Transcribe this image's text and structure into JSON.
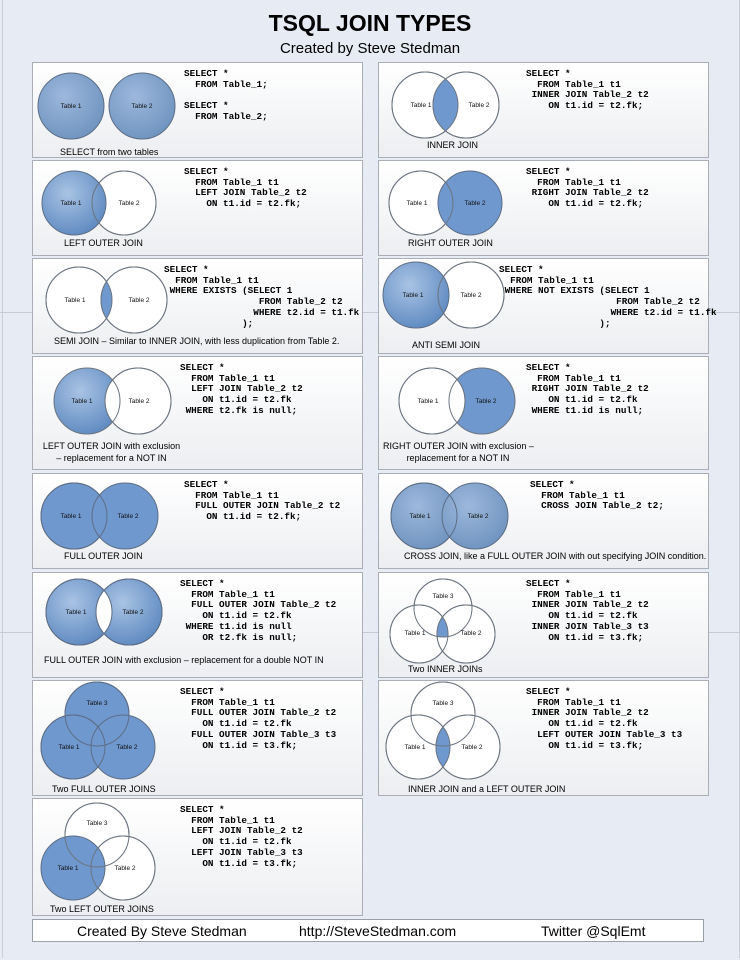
{
  "title": "TSQL JOIN TYPES",
  "subtitle": "Created by Steve Stedman",
  "colors": {
    "fill_blue": "#6f98cf",
    "outline": "#6c7580",
    "page_bg": "#e7ebf3"
  },
  "venn_labels": {
    "t1": "Table 1",
    "t2": "Table 2",
    "t3": "Table 3"
  },
  "panels": {
    "select_two_tables": {
      "caption": "SELECT from two tables",
      "code": "SELECT *\n  FROM Table_1;\n\nSELECT *\n  FROM Table_2;"
    },
    "inner_join": {
      "caption": "INNER JOIN",
      "code": "SELECT *\n  FROM Table_1 t1\n INNER JOIN Table_2 t2\n    ON t1.id = t2.fk;"
    },
    "left_outer_join": {
      "caption": "LEFT OUTER JOIN",
      "code": "SELECT *\n  FROM Table_1 t1\n  LEFT JOIN Table_2 t2\n    ON t1.id = t2.fk;"
    },
    "right_outer_join": {
      "caption": "RIGHT OUTER JOIN",
      "code": "SELECT *\n  FROM Table_1 t1\n RIGHT JOIN Table_2 t2\n    ON t1.id = t2.fk;"
    },
    "semi_join": {
      "caption": "SEMI JOIN – Similar to INNER JOIN, with less duplication from Table 2.",
      "code": "SELECT *\n  FROM Table_1 t1\n WHERE EXISTS (SELECT 1\n                 FROM Table_2 t2\n                WHERE t2.id = t1.fk\n              );"
    },
    "anti_semi_join": {
      "caption": "ANTI SEMI JOIN",
      "code": "SELECT *\n  FROM Table_1 t1\n WHERE NOT EXISTS (SELECT 1\n                     FROM Table_2 t2\n                    WHERE t2.id = t1.fk\n                  );"
    },
    "left_outer_exclusion": {
      "caption": "LEFT OUTER JOIN with exclusion\n– replacement for a NOT IN",
      "code": "SELECT *\n  FROM Table_1 t1\n  LEFT JOIN Table_2 t2\n    ON t1.id = t2.fk\n WHERE t2.fk is null;"
    },
    "right_outer_exclusion": {
      "caption": "RIGHT OUTER JOIN with exclusion –\nreplacement for a NOT IN",
      "code": "SELECT *\n  FROM Table_1 t1\n RIGHT JOIN Table_2 t2\n    ON t1.id = t2.fk\n WHERE t1.id is null;"
    },
    "full_outer_join": {
      "caption": "FULL OUTER JOIN",
      "code": "SELECT *\n  FROM Table_1 t1\n  FULL OUTER JOIN Table_2 t2\n    ON t1.id = t2.fk;"
    },
    "cross_join": {
      "caption": "CROSS JOIN, like a FULL OUTER JOIN with out specifying JOIN condition.",
      "code": "SELECT *\n  FROM Table_1 t1\n  CROSS JOIN Table_2 t2;"
    },
    "full_outer_exclusion": {
      "caption": "FULL OUTER JOIN with exclusion – replacement for a double NOT IN",
      "code": "SELECT *\n  FROM Table_1 t1\n  FULL OUTER JOIN Table_2 t2\n    ON t1.id = t2.fk\n WHERE t1.id is null\n    OR t2.fk is null;"
    },
    "two_inner_joins": {
      "caption": "Two INNER JOINs",
      "code": "SELECT *\n  FROM Table_1 t1\n INNER JOIN Table_2 t2\n    ON t1.id = t2.fk\n INNER JOIN Table_3 t3\n    ON t1.id = t3.fk;"
    },
    "two_full_outer_joins": {
      "caption": "Two FULL OUTER JOINS",
      "code": "SELECT *\n  FROM Table_1 t1\n  FULL OUTER JOIN Table_2 t2\n    ON t1.id = t2.fk\n  FULL OUTER JOIN Table_3 t3\n    ON t1.id = t3.fk;"
    },
    "inner_and_left_outer": {
      "caption": "INNER JOIN and a LEFT OUTER JOIN",
      "code": "SELECT *\n  FROM Table_1 t1\n INNER JOIN Table_2 t2\n    ON t1.id = t2.fk\n  LEFT OUTER JOIN Table_3 t3\n    ON t1.id = t3.fk;"
    },
    "two_left_outer_joins": {
      "caption": "Two LEFT OUTER JOINS",
      "code": "SELECT *\n  FROM Table_1 t1\n  LEFT JOIN Table_2 t2\n    ON t1.id = t2.fk\n  LEFT JOIN Table_3 t3\n    ON t1.id = t3.fk;"
    }
  },
  "footer": {
    "author": "Created By Steve Stedman",
    "url": "http://SteveStedman.com",
    "twitter": "Twitter  @SqlEmt"
  }
}
